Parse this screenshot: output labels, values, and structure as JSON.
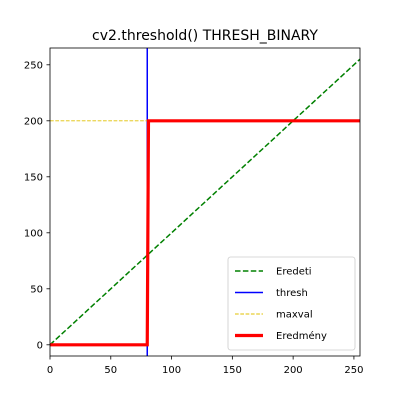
{
  "chart_data": {
    "type": "line",
    "title": "cv2.threshold() THRESH_BINARY",
    "xlabel": "",
    "ylabel": "",
    "xlim": [
      0,
      255
    ],
    "ylim": [
      -10,
      265
    ],
    "xticks": [
      0,
      50,
      100,
      150,
      200,
      250
    ],
    "yticks": [
      0,
      50,
      100,
      150,
      200,
      250
    ],
    "grid": false,
    "legend_position": "lower right",
    "series": [
      {
        "name": "Eredeti",
        "color": "#008000",
        "style": "dashed",
        "x": [
          0,
          255
        ],
        "y": [
          0,
          255
        ]
      },
      {
        "name": "thresh",
        "color": "#0000ff",
        "style": "solid",
        "x": [
          80,
          80
        ],
        "y": [
          -10,
          265
        ]
      },
      {
        "name": "maxval",
        "color": "#e0c000",
        "style": "dashed-thin",
        "x": [
          0,
          80
        ],
        "y": [
          200,
          200
        ]
      },
      {
        "name": "Eredmény",
        "color": "#ff0000",
        "style": "thick",
        "x": [
          0,
          80,
          81,
          255
        ],
        "y": [
          0,
          0,
          200,
          200
        ]
      }
    ]
  }
}
